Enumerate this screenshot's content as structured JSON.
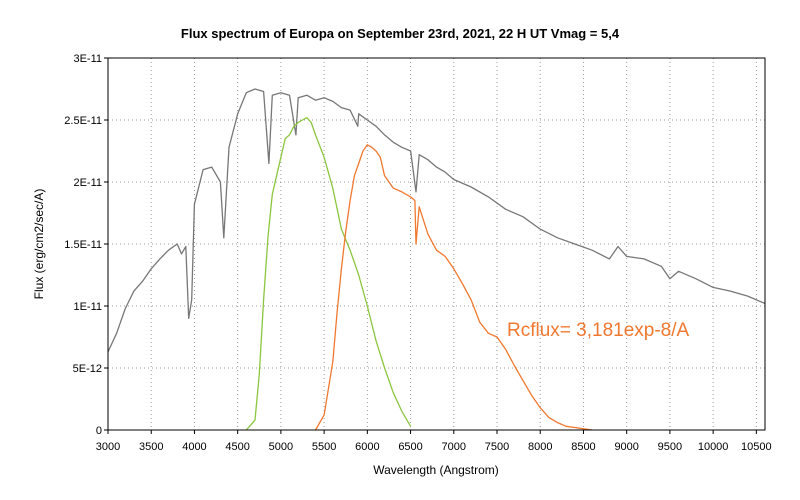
{
  "chart_data": {
    "type": "line",
    "title": "Flux spectrum of Europa on September 23rd, 2021, 22 H UT Vmag = 5,4",
    "xlabel": "Wavelength (Angstrom)",
    "ylabel": "Flux (erg/cm2/sec/A)",
    "xlim": [
      3000,
      10600
    ],
    "ylim": [
      0,
      3e-11
    ],
    "x_ticks": [
      3000,
      3500,
      4000,
      4500,
      5000,
      5500,
      6000,
      6500,
      7000,
      7500,
      8000,
      8500,
      9000,
      9500,
      10000,
      10500
    ],
    "y_ticks": [
      {
        "value": 0,
        "label": "0"
      },
      {
        "value": 5e-12,
        "label": "5E-12"
      },
      {
        "value": 1e-11,
        "label": "1E-11"
      },
      {
        "value": 1.5e-11,
        "label": "1.5E-11"
      },
      {
        "value": 2e-11,
        "label": "2E-11"
      },
      {
        "value": 2.5e-11,
        "label": "2.5E-11"
      },
      {
        "value": 3e-11,
        "label": "3E-11"
      }
    ],
    "grid": true,
    "annotation": {
      "text": "Rcflux= 3,181exp-8/A",
      "color": "#f07830"
    },
    "series": [
      {
        "color": "#777777",
        "x": [
          3000,
          3100,
          3200,
          3300,
          3400,
          3500,
          3600,
          3700,
          3800,
          3850,
          3900,
          3933,
          3968,
          4000,
          4100,
          4200,
          4300,
          4340,
          4400,
          4500,
          4600,
          4700,
          4800,
          4861,
          4900,
          5000,
          5100,
          5173,
          5200,
          5300,
          5400,
          5500,
          5600,
          5700,
          5800,
          5890,
          5900,
          6000,
          6100,
          6200,
          6300,
          6400,
          6500,
          6563,
          6600,
          6700,
          6800,
          6900,
          7000,
          7200,
          7400,
          7600,
          7800,
          8000,
          8200,
          8400,
          8600,
          8800,
          8900,
          9000,
          9200,
          9400,
          9500,
          9600,
          9800,
          10000,
          10200,
          10400,
          10600
        ],
        "y": [
          6.3e-12,
          7.8e-12,
          9.8e-12,
          1.12e-11,
          1.2e-11,
          1.3e-11,
          1.38e-11,
          1.45e-11,
          1.5e-11,
          1.42e-11,
          1.48e-11,
          9e-12,
          1.05e-11,
          1.82e-11,
          2.1e-11,
          2.12e-11,
          2e-11,
          1.55e-11,
          2.28e-11,
          2.55e-11,
          2.72e-11,
          2.75e-11,
          2.73e-11,
          2.15e-11,
          2.7e-11,
          2.72e-11,
          2.7e-11,
          2.38e-11,
          2.68e-11,
          2.7e-11,
          2.66e-11,
          2.68e-11,
          2.65e-11,
          2.6e-11,
          2.58e-11,
          2.45e-11,
          2.55e-11,
          2.5e-11,
          2.45e-11,
          2.38e-11,
          2.32e-11,
          2.28e-11,
          2.25e-11,
          1.92e-11,
          2.22e-11,
          2.18e-11,
          2.12e-11,
          2.08e-11,
          2.02e-11,
          1.96e-11,
          1.88e-11,
          1.78e-11,
          1.72e-11,
          1.62e-11,
          1.55e-11,
          1.5e-11,
          1.45e-11,
          1.38e-11,
          1.48e-11,
          1.4e-11,
          1.38e-11,
          1.32e-11,
          1.22e-11,
          1.28e-11,
          1.22e-11,
          1.15e-11,
          1.12e-11,
          1.08e-11,
          1.02e-11
        ]
      },
      {
        "color": "#8cc63f",
        "x": [
          4600,
          4700,
          4750,
          4800,
          4850,
          4900,
          4950,
          5000,
          5050,
          5100,
          5150,
          5200,
          5250,
          5300,
          5350,
          5400,
          5500,
          5600,
          5700,
          5800,
          5900,
          6000,
          6100,
          6200,
          6300,
          6400,
          6500
        ],
        "y": [
          0,
          8e-13,
          4.5e-12,
          1.05e-11,
          1.55e-11,
          1.9e-11,
          2.05e-11,
          2.2e-11,
          2.35e-11,
          2.38e-11,
          2.45e-11,
          2.48e-11,
          2.5e-11,
          2.52e-11,
          2.48e-11,
          2.38e-11,
          2.2e-11,
          1.95e-11,
          1.62e-11,
          1.45e-11,
          1.25e-11,
          1e-11,
          7.2e-12,
          5e-12,
          3e-12,
          1.5e-12,
          3e-13
        ]
      },
      {
        "color": "#f07830",
        "x": [
          5400,
          5500,
          5600,
          5650,
          5700,
          5750,
          5800,
          5850,
          5900,
          5950,
          6000,
          6050,
          6100,
          6150,
          6200,
          6300,
          6400,
          6500,
          6550,
          6563,
          6600,
          6700,
          6800,
          6900,
          7000,
          7100,
          7200,
          7300,
          7400,
          7500,
          7600,
          7700,
          7800,
          7900,
          8000,
          8100,
          8200,
          8300,
          8400,
          8500,
          8600
        ],
        "y": [
          0,
          1.2e-12,
          5.5e-12,
          9.5e-12,
          1.3e-11,
          1.6e-11,
          1.85e-11,
          2.05e-11,
          2.15e-11,
          2.25e-11,
          2.3e-11,
          2.28e-11,
          2.25e-11,
          2.2e-11,
          2.05e-11,
          1.95e-11,
          1.92e-11,
          1.88e-11,
          1.85e-11,
          1.5e-11,
          1.8e-11,
          1.58e-11,
          1.45e-11,
          1.4e-11,
          1.3e-11,
          1.18e-11,
          1.05e-11,
          8.7e-12,
          7.8e-12,
          7.5e-12,
          6.5e-12,
          5.2e-12,
          4e-12,
          2.8e-12,
          1.8e-12,
          1e-12,
          6e-13,
          3e-13,
          2e-13,
          1e-13,
          0
        ]
      }
    ]
  }
}
